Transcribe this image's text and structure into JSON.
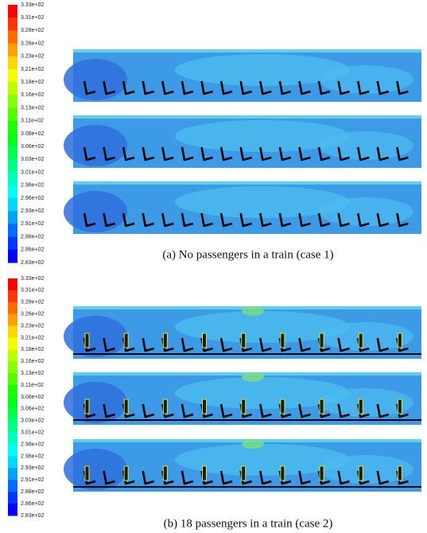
{
  "figures": [
    {
      "colorbar_labels": [
        "3.33e+02",
        "3.31e+02",
        "3.28e+02",
        "3.26e+02",
        "3.23e+02",
        "3.21e+02",
        "3.18e+02",
        "3.16e+02",
        "3.13e+02",
        "3.11e+02",
        "3.08e+02",
        "3.06e+02",
        "3.03e+02",
        "3.01e+02",
        "2.98e+02",
        "2.96e+02",
        "2.93e+02",
        "2.91e+02",
        "2.88e+02",
        "2.86e+02",
        "2.83e+02"
      ],
      "caption": "(a) No passengers in a train (case 1)"
    },
    {
      "colorbar_labels": [
        "3.33e+02",
        "3.31e+02",
        "3.28e+02",
        "3.26e+02",
        "3.23e+02",
        "3.21e+02",
        "3.18e+02",
        "3.16e+02",
        "3.13e+02",
        "3.11e+02",
        "3.08e+02",
        "3.06e+02",
        "3.03e+02",
        "3.01e+02",
        "2.98e+02",
        "2.96e+02",
        "2.93e+02",
        "2.91e+02",
        "2.88e+02",
        "2.86e+02",
        "2.83e+02"
      ],
      "caption": "(b) 18 passengers in a train (case 2)"
    }
  ]
}
